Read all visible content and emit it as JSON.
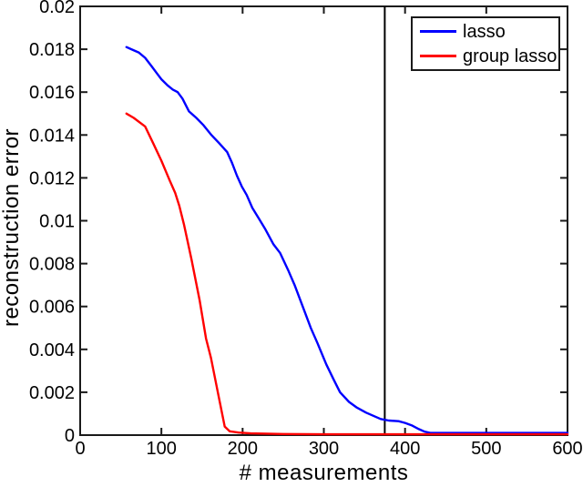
{
  "figure": {
    "background": "#ffffff"
  },
  "chart_data": {
    "type": "line",
    "title": "",
    "xlabel": "# measurements",
    "ylabel": "reconstruction error",
    "xlim": [
      0,
      600
    ],
    "ylim": [
      0,
      0.02
    ],
    "grid": false,
    "axis_color": "#1a1a1a",
    "legend_position": "top-right",
    "x_ticks": {
      "values": [
        0,
        100,
        200,
        300,
        400,
        500,
        600
      ],
      "labels": [
        "0",
        "100",
        "200",
        "300",
        "400",
        "500",
        "600"
      ]
    },
    "y_ticks": {
      "values": [
        0,
        0.002,
        0.004,
        0.006,
        0.008,
        0.01,
        0.012,
        0.014,
        0.016,
        0.018,
        0.02
      ],
      "labels": [
        "0",
        "0.002",
        "0.004",
        "0.006",
        "0.008",
        "0.01",
        "0.012",
        "0.014",
        "0.016",
        "0.018",
        "0.02"
      ]
    },
    "vline": {
      "x": 375,
      "color": "#000000"
    },
    "series": [
      {
        "name": "lasso",
        "color": "#0000ff",
        "points": [
          [
            57,
            0.0181
          ],
          [
            63,
            0.018
          ],
          [
            72,
            0.01785
          ],
          [
            80,
            0.0176
          ],
          [
            88,
            0.0172
          ],
          [
            95,
            0.01685
          ],
          [
            100,
            0.0166
          ],
          [
            108,
            0.0163
          ],
          [
            114,
            0.01612
          ],
          [
            120,
            0.016
          ],
          [
            126,
            0.0157
          ],
          [
            134,
            0.0151
          ],
          [
            143,
            0.0148
          ],
          [
            152,
            0.01445
          ],
          [
            161,
            0.01402
          ],
          [
            171,
            0.01362
          ],
          [
            181,
            0.0132
          ],
          [
            187,
            0.0127
          ],
          [
            193,
            0.0121
          ],
          [
            199,
            0.0116
          ],
          [
            205,
            0.0112
          ],
          [
            212,
            0.0106
          ],
          [
            220,
            0.0101
          ],
          [
            228,
            0.0096
          ],
          [
            238,
            0.0089
          ],
          [
            246,
            0.0085
          ],
          [
            256,
            0.0077
          ],
          [
            264,
            0.007
          ],
          [
            275,
            0.0059
          ],
          [
            284,
            0.005
          ],
          [
            292,
            0.0043
          ],
          [
            303,
            0.0033
          ],
          [
            312,
            0.0026
          ],
          [
            320,
            0.002
          ],
          [
            331,
            0.00155
          ],
          [
            340,
            0.0013
          ],
          [
            352,
            0.00105
          ],
          [
            361,
            0.0009
          ],
          [
            370,
            0.00075
          ],
          [
            380,
            0.00068
          ],
          [
            392,
            0.00065
          ],
          [
            400,
            0.00057
          ],
          [
            408,
            0.00046
          ],
          [
            417,
            0.00028
          ],
          [
            424,
            0.00016
          ],
          [
            431,
            0.0001
          ],
          [
            445,
            0.0001
          ],
          [
            500,
            0.0001
          ],
          [
            600,
            0.0001
          ]
        ]
      },
      {
        "name": "group lasso",
        "color": "#ff0000",
        "points": [
          [
            57,
            0.015
          ],
          [
            66,
            0.0148
          ],
          [
            80,
            0.0144
          ],
          [
            90,
            0.0136
          ],
          [
            100,
            0.0128
          ],
          [
            110,
            0.0119
          ],
          [
            117,
            0.0113
          ],
          [
            122,
            0.0107
          ],
          [
            128,
            0.0098
          ],
          [
            137,
            0.0082
          ],
          [
            147,
            0.0063
          ],
          [
            155,
            0.0045
          ],
          [
            161,
            0.0036
          ],
          [
            170,
            0.0019
          ],
          [
            178,
            0.0004
          ],
          [
            184,
            0.00018
          ],
          [
            195,
            0.00012
          ],
          [
            210,
            8e-05
          ],
          [
            250,
            5e-05
          ],
          [
            300,
            4e-05
          ],
          [
            400,
            4e-05
          ],
          [
            500,
            4e-05
          ],
          [
            600,
            4e-05
          ]
        ]
      }
    ]
  }
}
